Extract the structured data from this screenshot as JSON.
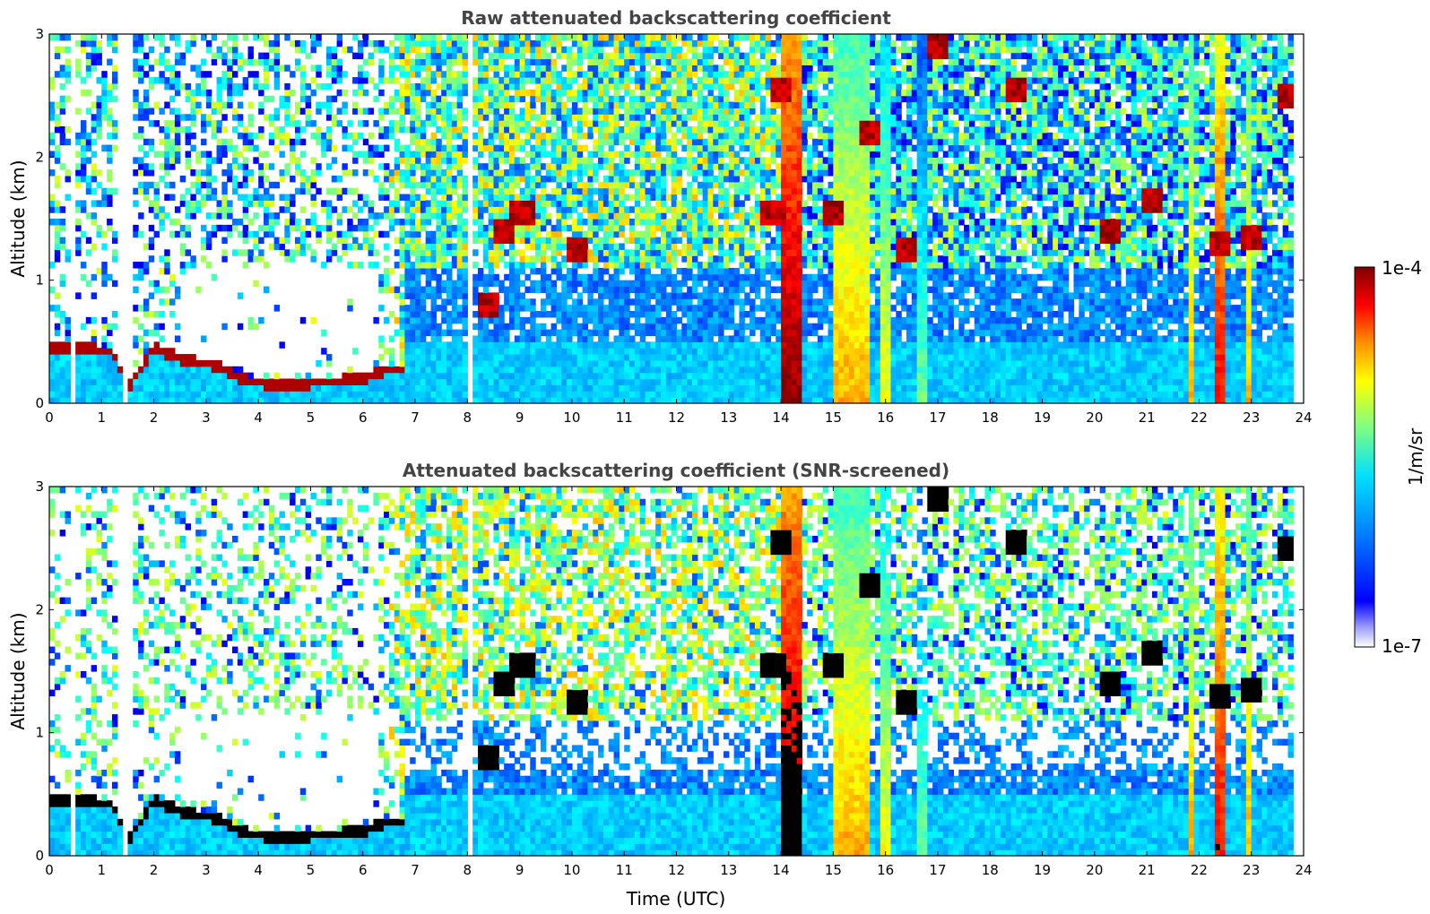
{
  "colors": {
    "colormap": [
      "#ffffff",
      "#00007f",
      "#0000ff",
      "#0080ff",
      "#00ffff",
      "#80ff80",
      "#ffff00",
      "#ff8000",
      "#ff0000",
      "#7f0000"
    ],
    "masked": "#000000",
    "background": "#ffffff",
    "title": "#444444"
  },
  "chart_data": [
    {
      "type": "heatmap",
      "title": "Raw attenuated backscattering coefficient",
      "xlabel": "",
      "ylabel": "Altitude (km)",
      "xlim": [
        0,
        24
      ],
      "ylim": [
        0,
        3
      ],
      "x_ticks": [
        "0",
        "1",
        "2",
        "3",
        "4",
        "5",
        "6",
        "7",
        "8",
        "9",
        "10",
        "11",
        "12",
        "13",
        "14",
        "15",
        "16",
        "17",
        "18",
        "19",
        "20",
        "21",
        "22",
        "23",
        "24"
      ],
      "y_ticks": [
        "0",
        "1",
        "2",
        "3"
      ],
      "units": "1/m/sr",
      "log_scale": true,
      "boundary_layer_top": [
        {
          "t": 0.0,
          "h": 0.47
        },
        {
          "t": 1.2,
          "h": 0.45
        },
        {
          "t": 1.3,
          "h": 0.35
        },
        {
          "t": 1.5,
          "h": 0.15
        },
        {
          "t": 1.75,
          "h": 0.3
        },
        {
          "t": 2.0,
          "h": 0.48
        },
        {
          "t": 2.5,
          "h": 0.38
        },
        {
          "t": 3.2,
          "h": 0.33
        },
        {
          "t": 3.8,
          "h": 0.2
        },
        {
          "t": 4.5,
          "h": 0.17
        },
        {
          "t": 5.2,
          "h": 0.19
        },
        {
          "t": 6.0,
          "h": 0.22
        },
        {
          "t": 6.5,
          "h": 0.3
        },
        {
          "t": 6.7,
          "h": 0.3
        }
      ],
      "clouds": [
        {
          "t": 8.4,
          "h": 0.78
        },
        {
          "t": 8.7,
          "h": 1.4
        },
        {
          "t": 9.05,
          "h": 1.55
        },
        {
          "t": 10.1,
          "h": 1.25
        },
        {
          "t": 13.85,
          "h": 1.55
        },
        {
          "t": 14.0,
          "h": 2.55
        },
        {
          "t": 15.0,
          "h": 1.55
        },
        {
          "t": 15.7,
          "h": 2.2
        },
        {
          "t": 16.4,
          "h": 1.25
        },
        {
          "t": 17.0,
          "h": 2.9
        },
        {
          "t": 18.5,
          "h": 2.55
        },
        {
          "t": 20.3,
          "h": 1.4
        },
        {
          "t": 21.1,
          "h": 1.65
        },
        {
          "t": 22.4,
          "h": 1.28
        },
        {
          "t": 23.0,
          "h": 1.35
        },
        {
          "t": 23.7,
          "h": 2.5
        }
      ],
      "precip_shafts": [
        {
          "t0": 14.05,
          "t1": 14.45,
          "peak": 0.95
        },
        {
          "t0": 15.05,
          "t1": 15.7,
          "peak": 0.7
        },
        {
          "t0": 15.9,
          "t1": 16.1,
          "peak": 0.62
        },
        {
          "t0": 16.6,
          "t1": 16.75,
          "peak": 0.5
        },
        {
          "t0": 21.8,
          "t1": 21.9,
          "peak": 0.7
        },
        {
          "t0": 22.35,
          "t1": 22.5,
          "peak": 0.85
        },
        {
          "t0": 22.9,
          "t1": 23.0,
          "peak": 0.7
        }
      ],
      "gaps": [
        0.45,
        1.45,
        1.5,
        5.6,
        6.6,
        7.6,
        8.05,
        8.2,
        8.3,
        11.8,
        12.6,
        17.4,
        18.1,
        18.8,
        19.8,
        20.8,
        21.4,
        22.2
      ]
    },
    {
      "type": "heatmap",
      "title": "Attenuated backscattering coefficient (SNR-screened)",
      "xlabel": "Time (UTC)",
      "ylabel": "Altitude (km)",
      "xlim": [
        0,
        24
      ],
      "ylim": [
        0,
        3
      ],
      "x_ticks": [
        "0",
        "1",
        "2",
        "3",
        "4",
        "5",
        "6",
        "7",
        "8",
        "9",
        "10",
        "11",
        "12",
        "13",
        "14",
        "15",
        "16",
        "17",
        "18",
        "19",
        "20",
        "21",
        "22",
        "23",
        "24"
      ],
      "y_ticks": [
        "0",
        "1",
        "2",
        "3"
      ],
      "units": "1/m/sr",
      "log_scale": true
    }
  ],
  "colorbar": {
    "label": "1/m/sr",
    "max_label": "1e-4",
    "min_label": "1e-7"
  }
}
